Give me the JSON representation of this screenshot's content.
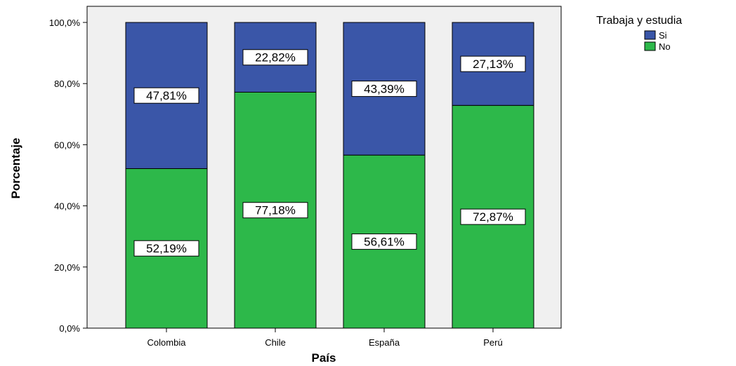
{
  "chart_data": {
    "type": "bar",
    "stacked": true,
    "title": "",
    "xlabel": "País",
    "ylabel": "Porcentaje",
    "ylim": [
      0,
      100
    ],
    "yticks": [
      "0,0%",
      "20,0%",
      "40,0%",
      "60,0%",
      "80,0%",
      "100,0%"
    ],
    "categories": [
      "Colombia",
      "Chile",
      "España",
      "Perú"
    ],
    "legend_title": "Trabaja y estudia",
    "legend_position": "top-right",
    "grid": false,
    "series": [
      {
        "name": "No",
        "color": "#2db84a",
        "values": [
          52.19,
          77.18,
          56.61,
          72.87
        ],
        "labels": [
          "52,19%",
          "77,18%",
          "56,61%",
          "72,87%"
        ]
      },
      {
        "name": "Si",
        "color": "#3a56a8",
        "values": [
          47.81,
          22.82,
          43.39,
          27.13
        ],
        "labels": [
          "47,81%",
          "22,82%",
          "43,39%",
          "27,13%"
        ]
      }
    ],
    "legend_order": [
      "Si",
      "No"
    ],
    "plot_background": "#f0f0f0"
  }
}
